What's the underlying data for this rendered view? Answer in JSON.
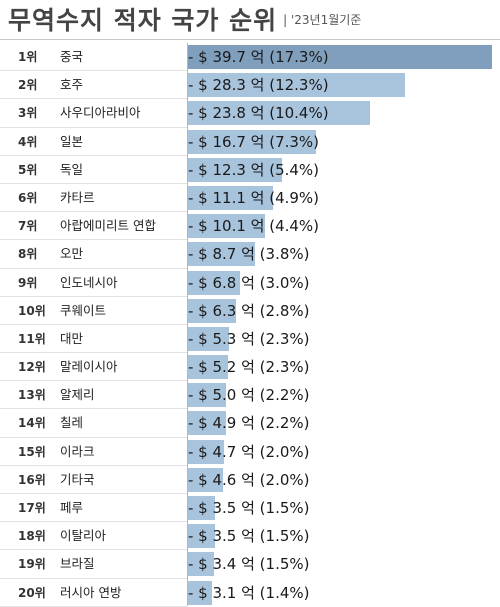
{
  "header": {
    "title": "무역수지 적자 국가 순위",
    "subtitle": "| '23년1월기준"
  },
  "colors": {
    "bar": "#a8c4dd",
    "bar_top": "#7f9fbd"
  },
  "chart_data": {
    "type": "bar",
    "orientation": "horizontal",
    "title": "무역수지 적자 국가 순위",
    "subtitle": "'23년1월기준",
    "ranks": [
      "1위",
      "2위",
      "3위",
      "4위",
      "5위",
      "6위",
      "7위",
      "8위",
      "9위",
      "10위",
      "11위",
      "12위",
      "13위",
      "14위",
      "15위",
      "16위",
      "17위",
      "18위",
      "19위",
      "20위"
    ],
    "categories": [
      "중국",
      "호주",
      "사우디아라비아",
      "일본",
      "독일",
      "카타르",
      "아랍에미리트 연합",
      "오만",
      "인도네시아",
      "쿠웨이트",
      "대만",
      "말레이시아",
      "알제리",
      "칠레",
      "이라크",
      "기타국",
      "페루",
      "이탈리아",
      "브라질",
      "러시아 연방"
    ],
    "values": [
      39.7,
      28.3,
      23.8,
      16.7,
      12.3,
      11.1,
      10.1,
      8.7,
      6.8,
      6.3,
      5.3,
      5.2,
      5.0,
      4.9,
      4.7,
      4.6,
      3.5,
      3.5,
      3.4,
      3.1
    ],
    "labels": [
      "- $ 39.7 억 (17.3%)",
      "- $ 28.3 억 (12.3%)",
      "- $ 23.8 억 (10.4%)",
      "- $ 16.7 억 (7.3%)",
      "- $ 12.3 억 (5.4%)",
      "- $ 11.1 억 (4.9%)",
      "- $ 10.1 억 (4.4%)",
      "- $ 8.7 억 (3.8%)",
      "- $ 6.8 억 (3.0%)",
      "- $ 6.3 억 (2.8%)",
      "- $ 5.3 억 (2.3%)",
      "- $ 5.2 억 (2.3%)",
      "- $ 5.0 억 (2.2%)",
      "- $ 4.9 억 (2.2%)",
      "- $ 4.7 억 (2.0%)",
      "- $ 4.6 억 (2.0%)",
      "- $ 3.5 억 (1.5%)",
      "- $ 3.5 억 (1.5%)",
      "- $ 3.4 억 (1.5%)",
      "- $ 3.1 억 (1.4%)"
    ],
    "xlim": [
      0,
      39.7
    ],
    "grid": false,
    "legend": "none"
  }
}
